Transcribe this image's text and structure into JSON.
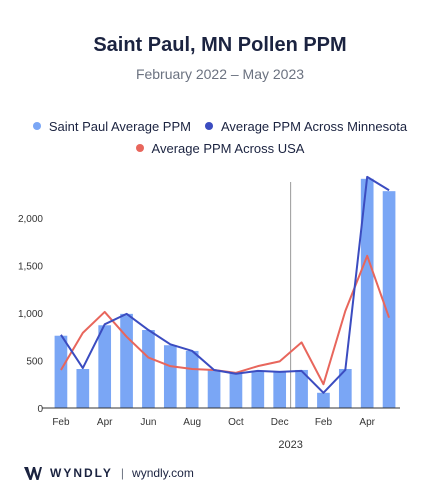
{
  "header": {
    "title": "Saint Paul, MN Pollen PPM",
    "subtitle": "February 2022 – May 2023"
  },
  "footer": {
    "brand": "WYNDLY",
    "separator": "|",
    "url": "wyndly.com"
  },
  "colors": {
    "bars": "#7aa6f5",
    "minnesota": "#3b4cc0",
    "usa": "#e8665c",
    "divider": "#9a9a9a",
    "axis": "#333333"
  },
  "chart_data": {
    "type": "bar",
    "title": "Saint Paul, MN Pollen PPM",
    "subtitle": "February 2022 – May 2023",
    "categories": [
      "Feb 2022",
      "Mar 2022",
      "Apr 2022",
      "May 2022",
      "Jun 2022",
      "Jul 2022",
      "Aug 2022",
      "Sep 2022",
      "Oct 2022",
      "Nov 2022",
      "Dec 2022",
      "Jan 2023",
      "Feb 2023",
      "Mar 2023",
      "Apr 2023",
      "May 2023"
    ],
    "x_tick_labels": [
      {
        "index": 0,
        "label": "Feb"
      },
      {
        "index": 2,
        "label": "Apr"
      },
      {
        "index": 4,
        "label": "Jun"
      },
      {
        "index": 6,
        "label": "Aug"
      },
      {
        "index": 8,
        "label": "Oct"
      },
      {
        "index": 10,
        "label": "Dec"
      },
      {
        "index": 12,
        "label": "Feb"
      },
      {
        "index": 14,
        "label": "Apr"
      }
    ],
    "year_marker": {
      "after_index": 10,
      "label": "2023"
    },
    "y_ticks": [
      0,
      500,
      1000,
      1500,
      2000
    ],
    "y_tick_labels": [
      "0",
      "500",
      "1,000",
      "1,500",
      "2,000"
    ],
    "ylim": [
      0,
      2450
    ],
    "series": [
      {
        "name": "Saint Paul Average PPM",
        "kind": "bar",
        "values": [
          760,
          410,
          870,
          990,
          820,
          660,
          600,
          400,
          370,
          390,
          380,
          400,
          160,
          410,
          2410,
          2280
        ]
      },
      {
        "name": "Average PPM Across Minnesota",
        "kind": "line",
        "values": [
          770,
          420,
          880,
          990,
          820,
          670,
          600,
          400,
          360,
          390,
          380,
          390,
          160,
          400,
          2430,
          2290
        ]
      },
      {
        "name": "Average PPM Across USA",
        "kind": "line",
        "values": [
          400,
          790,
          1010,
          750,
          530,
          440,
          410,
          400,
          370,
          440,
          490,
          690,
          250,
          1020,
          1600,
          950
        ]
      }
    ],
    "legend_position": "top",
    "grid": false
  }
}
